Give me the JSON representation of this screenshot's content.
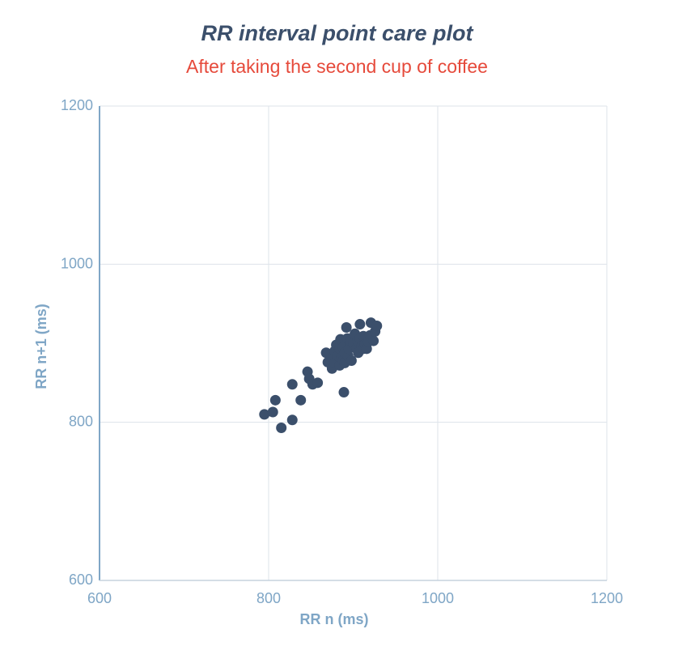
{
  "chart_data": {
    "type": "scatter",
    "title": "RR interval point care plot",
    "subtitle": "After taking the second cup of coffee",
    "xlabel": "RR n (ms)",
    "ylabel": "RR n+1 (ms)",
    "xlim": [
      600,
      1200
    ],
    "ylim": [
      600,
      1200
    ],
    "x_ticks": [
      "600",
      "800",
      "1000",
      "1200"
    ],
    "y_ticks": [
      "600",
      "800",
      "1000",
      "1200"
    ],
    "grid": true,
    "point_color": "#3b4f6b",
    "series": [
      {
        "points": [
          [
            795,
            810
          ],
          [
            805,
            813
          ],
          [
            808,
            828
          ],
          [
            815,
            793
          ],
          [
            828,
            848
          ],
          [
            828,
            803
          ],
          [
            838,
            828
          ],
          [
            846,
            864
          ],
          [
            848,
            855
          ],
          [
            852,
            848
          ],
          [
            858,
            850
          ],
          [
            868,
            888
          ],
          [
            870,
            876
          ],
          [
            875,
            882
          ],
          [
            875,
            868
          ],
          [
            878,
            890
          ],
          [
            878,
            875
          ],
          [
            880,
            898
          ],
          [
            882,
            884
          ],
          [
            884,
            872
          ],
          [
            884,
            893
          ],
          [
            885,
            905
          ],
          [
            886,
            882
          ],
          [
            888,
            878
          ],
          [
            888,
            895
          ],
          [
            889,
            838
          ],
          [
            890,
            875
          ],
          [
            890,
            888
          ],
          [
            892,
            920
          ],
          [
            893,
            906
          ],
          [
            894,
            884
          ],
          [
            895,
            893
          ],
          [
            897,
            903
          ],
          [
            898,
            878
          ],
          [
            900,
            900
          ],
          [
            902,
            912
          ],
          [
            904,
            893
          ],
          [
            905,
            903
          ],
          [
            906,
            888
          ],
          [
            908,
            924
          ],
          [
            908,
            906
          ],
          [
            910,
            896
          ],
          [
            912,
            893
          ],
          [
            912,
            909
          ],
          [
            914,
            899
          ],
          [
            916,
            893
          ],
          [
            918,
            902
          ],
          [
            920,
            910
          ],
          [
            921,
            926
          ],
          [
            924,
            903
          ],
          [
            926,
            915
          ],
          [
            928,
            922
          ]
        ]
      }
    ]
  }
}
